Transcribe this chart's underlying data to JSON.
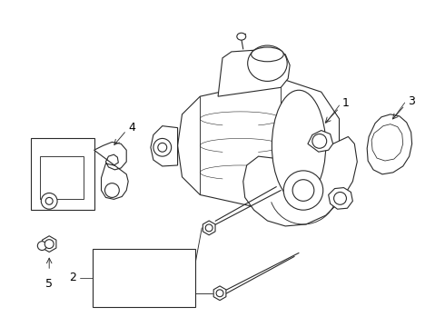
{
  "background_color": "#ffffff",
  "line_color": "#2a2a2a",
  "line_width": 0.8,
  "label_fontsize": 8,
  "fig_width": 4.9,
  "fig_height": 3.6,
  "dpi": 100
}
